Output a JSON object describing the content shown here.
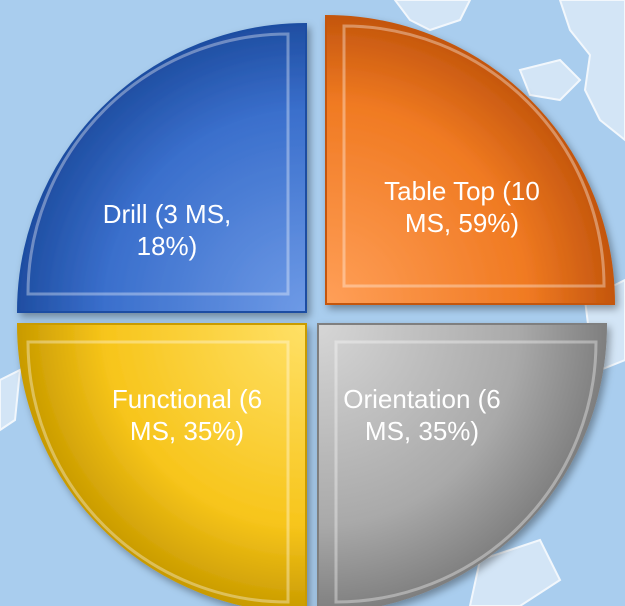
{
  "chart_data": {
    "type": "pie",
    "title": "",
    "slices": [
      {
        "name": "Drill",
        "lines": [
          "Drill (3 MS,",
          "18%)"
        ],
        "ms": 3,
        "percent": 18,
        "color": "#3a6fcc",
        "light": "#6e9ae6",
        "dark": "#1f4ea2"
      },
      {
        "name": "Table Top",
        "lines": [
          "Table Top (10",
          "MS, 59%)"
        ],
        "ms": 10,
        "percent": 59,
        "color": "#f07a22",
        "light": "#ff9f58",
        "dark": "#c4560d"
      },
      {
        "name": "Orientation",
        "lines": [
          "Orientation (6",
          "MS, 35%)"
        ],
        "ms": 6,
        "percent": 35,
        "color": "#a9a9a9",
        "light": "#d6d6d6",
        "dark": "#7f7f7f"
      },
      {
        "name": "Functional",
        "lines": [
          "Functional (6",
          "MS, 35%)"
        ],
        "ms": 6,
        "percent": 35,
        "color": "#f7c51b",
        "light": "#ffe066",
        "dark": "#c99b00"
      }
    ]
  },
  "background": {
    "sea": "#a9cdee",
    "land": "#dbeaf8",
    "coast": "#ffffff"
  }
}
